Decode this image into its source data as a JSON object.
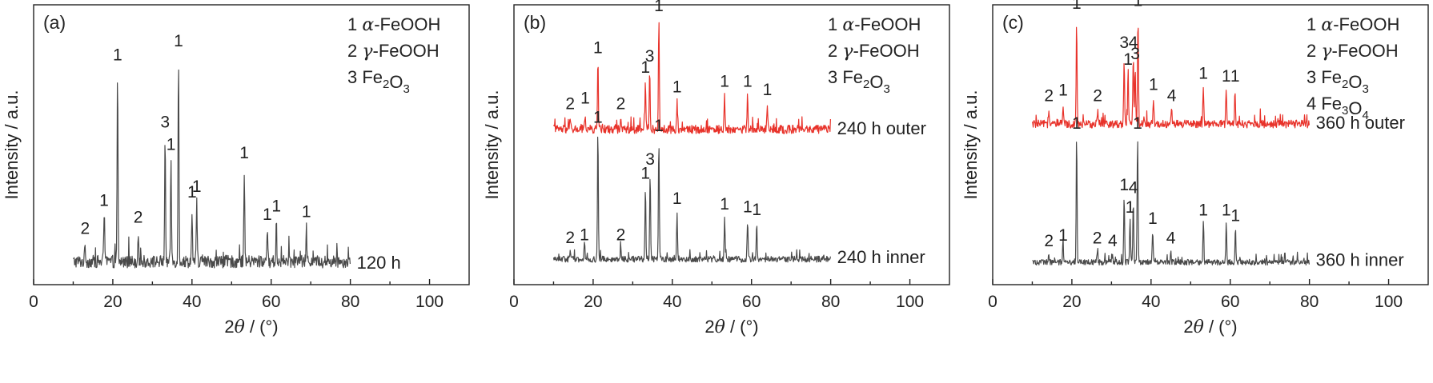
{
  "chart_data": [
    {
      "type": "line",
      "panel_label": "(a)",
      "xlabel": "2θ / (°)",
      "ylabel": "Intensity / a.u.",
      "xlim": [
        0,
        110
      ],
      "xticks": [
        0,
        20,
        40,
        60,
        80,
        100
      ],
      "legend": [
        "1 α-FeOOH",
        "2 γ-FeOOH",
        "3 Fe2O3"
      ],
      "series": [
        {
          "name": "120 h",
          "color": "#4a4a4a",
          "x_range": [
            10,
            80
          ],
          "baseline": 6,
          "noise": 4.5,
          "peaks": [
            {
              "x": 13.0,
              "h": 6,
              "label": "2"
            },
            {
              "x": 17.8,
              "h": 16,
              "label": "1"
            },
            {
              "x": 21.2,
              "h": 68,
              "label": "1"
            },
            {
              "x": 26.4,
              "h": 10,
              "label": "2"
            },
            {
              "x": 33.2,
              "h": 44,
              "label": "3"
            },
            {
              "x": 34.7,
              "h": 36,
              "label": "1"
            },
            {
              "x": 36.6,
              "h": 73,
              "label": "1"
            },
            {
              "x": 40.0,
              "h": 19,
              "label": "1"
            },
            {
              "x": 41.2,
              "h": 21,
              "label": "1"
            },
            {
              "x": 53.2,
              "h": 33,
              "label": "1"
            },
            {
              "x": 59.0,
              "h": 11,
              "label": "1"
            },
            {
              "x": 61.3,
              "h": 14,
              "label": "1"
            },
            {
              "x": 68.9,
              "h": 12,
              "label": "1"
            }
          ]
        }
      ]
    },
    {
      "type": "line",
      "panel_label": "(b)",
      "xlabel": "2θ / (°)",
      "ylabel": "Intensity / a.u.",
      "xlim": [
        0,
        110
      ],
      "xticks": [
        0,
        20,
        40,
        60,
        80,
        100
      ],
      "legend": [
        "1 α-FeOOH",
        "2 γ-FeOOH",
        "3 Fe2O3"
      ],
      "series": [
        {
          "name": "240 h outer",
          "color": "#e8322a",
          "x_range": [
            10,
            80
          ],
          "baseline": 54,
          "noise": 3.0,
          "peaks": [
            {
              "x": 14.2,
              "h": 4,
              "label": "2"
            },
            {
              "x": 18.0,
              "h": 6,
              "label": "1"
            },
            {
              "x": 21.2,
              "h": 24,
              "label": "1"
            },
            {
              "x": 27.0,
              "h": 4,
              "label": "2"
            },
            {
              "x": 33.2,
              "h": 17,
              "label": "1"
            },
            {
              "x": 34.3,
              "h": 21,
              "label": "3"
            },
            {
              "x": 36.6,
              "h": 39,
              "label": "1"
            },
            {
              "x": 41.2,
              "h": 10,
              "label": "1"
            },
            {
              "x": 53.2,
              "h": 12,
              "label": "1"
            },
            {
              "x": 59.0,
              "h": 12,
              "label": "1"
            },
            {
              "x": 64.0,
              "h": 9,
              "label": "1"
            }
          ]
        },
        {
          "name": "240 h inner",
          "color": "#4a4a4a",
          "x_range": [
            10,
            80
          ],
          "baseline": 8,
          "noise": 2.2,
          "peaks": [
            {
              "x": 14.2,
              "h": 3,
              "label": "2"
            },
            {
              "x": 17.8,
              "h": 4,
              "label": "1"
            },
            {
              "x": 21.2,
              "h": 46,
              "label": "1"
            },
            {
              "x": 27.0,
              "h": 4,
              "label": "2"
            },
            {
              "x": 33.2,
              "h": 26,
              "label": "1"
            },
            {
              "x": 34.4,
              "h": 31,
              "label": "3"
            },
            {
              "x": 36.6,
              "h": 43,
              "label": "1"
            },
            {
              "x": 41.2,
              "h": 17,
              "label": "1"
            },
            {
              "x": 53.2,
              "h": 15,
              "label": "1"
            },
            {
              "x": 59.0,
              "h": 14,
              "label": "1"
            },
            {
              "x": 61.3,
              "h": 13,
              "label": "1"
            }
          ]
        }
      ]
    },
    {
      "type": "line",
      "panel_label": "(c)",
      "xlabel": "2θ / (°)",
      "ylabel": "Intensity / a.u.",
      "xlim": [
        0,
        110
      ],
      "xticks": [
        0,
        20,
        40,
        60,
        80,
        100
      ],
      "legend": [
        "1 α-FeOOH",
        "2 γ-FeOOH",
        "3 Fe2O3",
        "4 Fe3O4"
      ],
      "series": [
        {
          "name": "360 h outer",
          "color": "#e8322a",
          "x_range": [
            10,
            80
          ],
          "baseline": 56,
          "noise": 2.8,
          "peaks": [
            {
              "x": 14.2,
              "h": 5,
              "label": "2"
            },
            {
              "x": 17.8,
              "h": 7,
              "label": "1"
            },
            {
              "x": 21.2,
              "h": 38,
              "label": "1"
            },
            {
              "x": 26.5,
              "h": 5,
              "label": "2"
            },
            {
              "x": 33.2,
              "h": 24,
              "label": "3"
            },
            {
              "x": 34.2,
              "h": 18,
              "label": "1"
            },
            {
              "x": 35.5,
              "h": 24,
              "label": "4"
            },
            {
              "x": 36.0,
              "h": 20,
              "label": "3"
            },
            {
              "x": 36.7,
              "h": 39,
              "label": "1"
            },
            {
              "x": 40.6,
              "h": 9,
              "label": "1"
            },
            {
              "x": 45.2,
              "h": 5,
              "label": "4"
            },
            {
              "x": 53.2,
              "h": 13,
              "label": "1"
            },
            {
              "x": 59.0,
              "h": 12,
              "label": "1"
            },
            {
              "x": 61.2,
              "h": 12,
              "label": "1"
            }
          ]
        },
        {
          "name": "360 h inner",
          "color": "#4a4a4a",
          "x_range": [
            10,
            80
          ],
          "baseline": 7,
          "noise": 2.0,
          "peaks": [
            {
              "x": 14.2,
              "h": 3,
              "label": "2"
            },
            {
              "x": 17.8,
              "h": 5,
              "label": "1"
            },
            {
              "x": 21.2,
              "h": 45,
              "label": "1"
            },
            {
              "x": 26.4,
              "h": 4,
              "label": "2"
            },
            {
              "x": 30.3,
              "h": 3,
              "label": "4"
            },
            {
              "x": 33.2,
              "h": 23,
              "label": "1"
            },
            {
              "x": 34.7,
              "h": 15,
              "label": "1"
            },
            {
              "x": 35.5,
              "h": 22,
              "label": "4"
            },
            {
              "x": 36.6,
              "h": 45,
              "label": "1"
            },
            {
              "x": 40.4,
              "h": 11,
              "label": "1"
            },
            {
              "x": 45.0,
              "h": 4,
              "label": "4"
            },
            {
              "x": 53.2,
              "h": 14,
              "label": "1"
            },
            {
              "x": 59.0,
              "h": 14,
              "label": "1"
            },
            {
              "x": 61.3,
              "h": 12,
              "label": "1"
            }
          ]
        }
      ]
    }
  ]
}
